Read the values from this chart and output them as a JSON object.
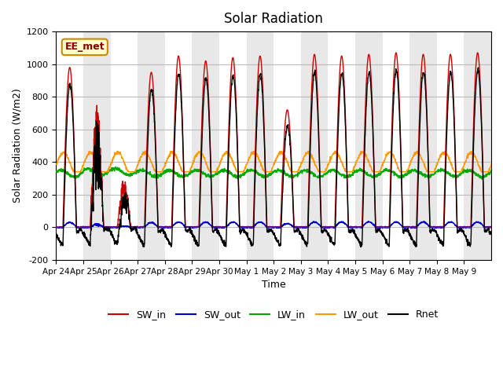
{
  "title": "Solar Radiation",
  "ylabel": "Solar Radiation (W/m2)",
  "xlabel": "Time",
  "ylim": [
    -200,
    1200
  ],
  "annotation_text": "EE_met",
  "xtick_labels": [
    "Apr 24",
    "Apr 25",
    "Apr 26",
    "Apr 27",
    "Apr 28",
    "Apr 29",
    "Apr 30",
    "May 1",
    "May 2",
    "May 3",
    "May 4",
    "May 5",
    "May 6",
    "May 7",
    "May 8",
    "May 9"
  ],
  "ytick_labels": [
    -200,
    0,
    200,
    400,
    600,
    800,
    1000,
    1200
  ],
  "colors": {
    "SW_in": "#cc0000",
    "SW_out": "#0000cc",
    "LW_in": "#00aa00",
    "LW_out": "#ff9900",
    "Rnet": "#000000"
  },
  "n_days": 16,
  "lw_in_base": 330,
  "lw_out_base": 390,
  "day_peaks": [
    0.98,
    0.75,
    0.3,
    0.95,
    1.05,
    1.02,
    1.04,
    1.05,
    0.72,
    1.06,
    1.05,
    1.06,
    1.07,
    1.06,
    1.06,
    1.07
  ],
  "bg_color": "#e8e8e8",
  "stripe_color": "#ffffff"
}
